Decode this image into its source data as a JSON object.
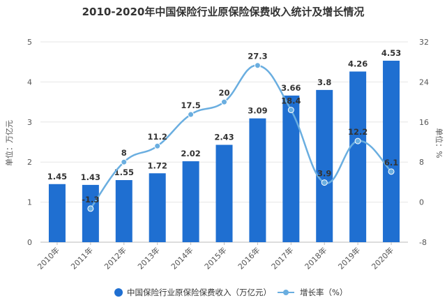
{
  "chart_data": {
    "type": "bar",
    "title": "2010-2020年中国保险行业原保险保费收入统计及增长情况",
    "categories": [
      "2010年",
      "2011年",
      "2012年",
      "2013年",
      "2014年",
      "2015年",
      "2016年",
      "2017年",
      "2018年",
      "2019年",
      "2020年"
    ],
    "series": [
      {
        "name": "中国保险行业原保险保费收入（万亿元）",
        "type": "bar",
        "axis": "left",
        "color": "#1f6fd1",
        "values": [
          1.45,
          1.43,
          1.55,
          1.72,
          2.02,
          2.43,
          3.09,
          3.66,
          3.8,
          4.26,
          4.53
        ]
      },
      {
        "name": "增长率（%）",
        "type": "line",
        "axis": "right",
        "color": "#6aaee0",
        "values": [
          null,
          -1.3,
          8,
          11.2,
          17.5,
          20,
          27.3,
          18.4,
          3.9,
          12.2,
          6.1
        ]
      }
    ],
    "ylabel_left": "单位：万亿元",
    "ylabel_right": "单位：%",
    "ylim_left": [
      0,
      5
    ],
    "yticks_left": [
      "0",
      "1",
      "2",
      "3",
      "4",
      "5"
    ],
    "ylim_right": [
      -8,
      32
    ],
    "yticks_right": [
      "-8",
      "0",
      "8",
      "16",
      "24",
      "32"
    ],
    "grid": true,
    "legend_position": "bottom"
  }
}
